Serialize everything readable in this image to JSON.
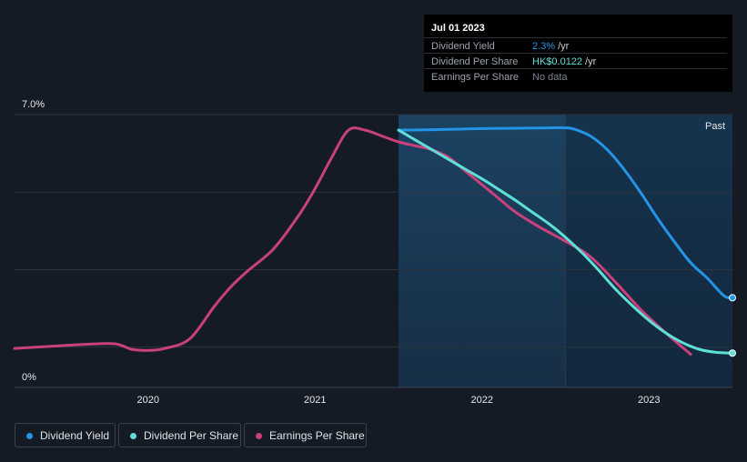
{
  "tooltip": {
    "date": "Jul 01 2023",
    "rows": [
      {
        "label": "Dividend Yield",
        "value": "2.3%",
        "unit": "/yr",
        "color": "#2394e6"
      },
      {
        "label": "Dividend Per Share",
        "value": "HK$0.0122",
        "unit": "/yr",
        "color": "#5ee0d6"
      },
      {
        "label": "Earnings Per Share",
        "value": "No data",
        "unit": "",
        "color": "#7b838e"
      }
    ]
  },
  "legend": [
    {
      "label": "Dividend Yield",
      "color": "#2394e6"
    },
    {
      "label": "Dividend Per Share",
      "color": "#5ee0d6"
    },
    {
      "label": "Earnings Per Share",
      "color": "#c9417c"
    }
  ],
  "chart_data": {
    "type": "line",
    "title": "",
    "xlabel": "",
    "ylabel": "",
    "ylim": [
      0,
      7.0
    ],
    "xlim": [
      2019.2,
      2023.5
    ],
    "y_tick_labels": [
      "7.0%",
      "0%"
    ],
    "x_ticks": [
      2020,
      2021,
      2022,
      2023
    ],
    "x_tick_labels": [
      "2020",
      "2021",
      "2022",
      "2023"
    ],
    "past_label": "Past",
    "past_region_start": 2021.5,
    "past_split": 2022.5,
    "series": [
      {
        "name": "Dividend Yield",
        "color": "#2394e6",
        "end_marker": true,
        "x": [
          2021.5,
          2021.8,
          2022.0,
          2022.2,
          2022.4,
          2022.5,
          2022.55,
          2022.65,
          2022.75,
          2022.85,
          2022.95,
          2023.05,
          2023.15,
          2023.25,
          2023.35,
          2023.45,
          2023.5
        ],
        "values": [
          6.6,
          6.62,
          6.64,
          6.65,
          6.66,
          6.66,
          6.63,
          6.45,
          6.1,
          5.6,
          5.0,
          4.35,
          3.75,
          3.2,
          2.8,
          2.35,
          2.3
        ]
      },
      {
        "name": "Dividend Per Share",
        "color": "#5ee0d6",
        "end_marker": true,
        "x": [
          2021.5,
          2021.6,
          2021.7,
          2021.8,
          2021.9,
          2022.0,
          2022.1,
          2022.2,
          2022.3,
          2022.4,
          2022.5,
          2022.6,
          2022.7,
          2022.8,
          2022.9,
          2023.0,
          2023.1,
          2023.2,
          2023.3,
          2023.4,
          2023.5
        ],
        "values": [
          6.6,
          6.35,
          6.1,
          5.85,
          5.6,
          5.35,
          5.08,
          4.8,
          4.5,
          4.2,
          3.85,
          3.45,
          3.0,
          2.52,
          2.1,
          1.72,
          1.4,
          1.15,
          0.98,
          0.9,
          0.88
        ]
      },
      {
        "name": "Earnings Per Share",
        "color": "#c9417c",
        "end_marker": false,
        "x": [
          2019.2,
          2019.4,
          2019.6,
          2019.8,
          2019.9,
          2020.0,
          2020.1,
          2020.25,
          2020.4,
          2020.5,
          2020.6,
          2020.75,
          2020.9,
          2021.0,
          2021.1,
          2021.2,
          2021.3,
          2021.4,
          2021.5,
          2021.6,
          2021.7,
          2021.8,
          2021.9,
          2022.0,
          2022.1,
          2022.2,
          2022.35,
          2022.5,
          2022.65,
          2022.8,
          2022.95,
          2023.1,
          2023.25
        ],
        "values": [
          1.0,
          1.05,
          1.1,
          1.12,
          0.98,
          0.95,
          1.0,
          1.25,
          2.1,
          2.6,
          3.0,
          3.55,
          4.4,
          5.1,
          5.9,
          6.6,
          6.6,
          6.45,
          6.3,
          6.2,
          6.1,
          5.9,
          5.55,
          5.2,
          4.85,
          4.5,
          4.1,
          3.75,
          3.35,
          2.7,
          2.0,
          1.4,
          0.85
        ]
      }
    ]
  }
}
